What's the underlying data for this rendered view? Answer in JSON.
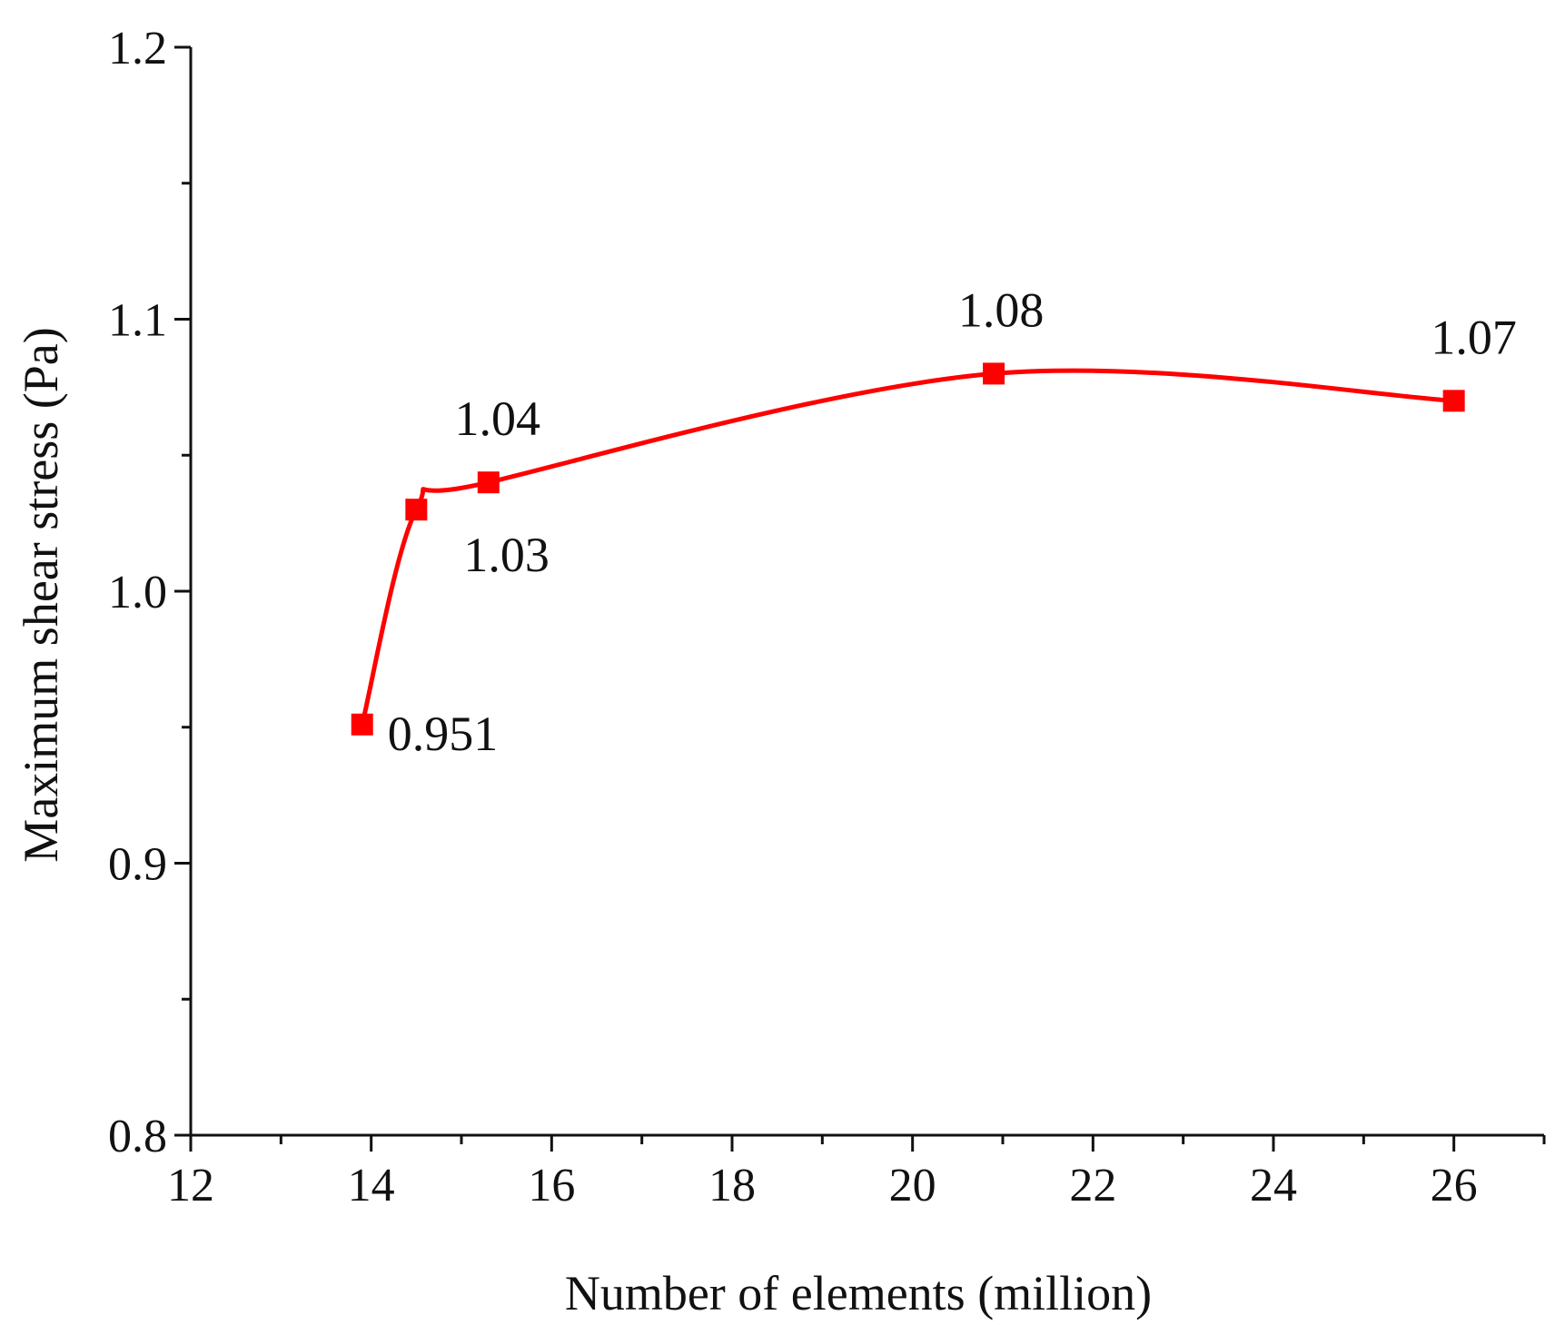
{
  "chart_data": {
    "type": "line",
    "title": "",
    "xlabel": "Number of elements (million)",
    "ylabel": "Maximum shear stress (Pa)",
    "xlim": [
      12,
      27
    ],
    "ylim": [
      0.8,
      1.2
    ],
    "x_ticks": [
      12,
      14,
      16,
      18,
      20,
      22,
      24,
      26
    ],
    "x_minor_ticks": [
      13,
      15,
      17,
      19,
      21,
      23,
      25,
      27
    ],
    "y_ticks": [
      "0.8",
      "0.9",
      "1.0",
      "1.1",
      "1.2"
    ],
    "y_tick_values": [
      0.8,
      0.9,
      1.0,
      1.1,
      1.2
    ],
    "y_minor_ticks": [
      0.85,
      0.95,
      1.05,
      1.15
    ],
    "grid": false,
    "legend": "none",
    "series": [
      {
        "x": [
          13.9,
          14.5,
          15.3,
          20.9,
          26.0
        ],
        "y": [
          0.951,
          1.03,
          1.04,
          1.08,
          1.07
        ],
        "labels": [
          "0.951",
          "1.03",
          "1.04",
          "1.08",
          "1.07"
        ],
        "color": "#ff0000",
        "marker": "square",
        "line": "smooth"
      }
    ]
  }
}
